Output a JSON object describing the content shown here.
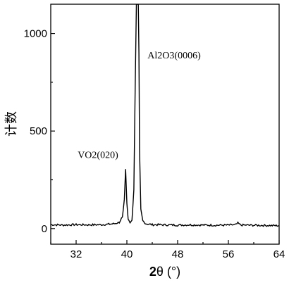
{
  "chart_data": {
    "type": "line",
    "xlabel_bold": "2",
    "xlabel_rest": "θ (°)",
    "ylabel": "计数",
    "xlim": [
      28,
      64
    ],
    "ylim": [
      -80,
      1150
    ],
    "x_ticks": [
      32,
      40,
      48,
      56,
      64
    ],
    "y_ticks": [
      0,
      500,
      1000
    ],
    "grid": false,
    "legend": "none",
    "line_color": "#000000",
    "series": [
      {
        "x": [
          28,
          30,
          32,
          34,
          36,
          37,
          38,
          38.8,
          39.3,
          39.6,
          39.8,
          40.0,
          40.2,
          40.5,
          40.8,
          41.1,
          41.3,
          41.5,
          41.6,
          41.7,
          41.8,
          41.9,
          42.0,
          42.2,
          42.5,
          43.0,
          44,
          46,
          48,
          50,
          52,
          54,
          56,
          57.2,
          57.5,
          57.8,
          58,
          60,
          62,
          64
        ],
        "y": [
          20,
          18,
          20,
          19,
          20,
          22,
          25,
          32,
          60,
          150,
          305,
          130,
          45,
          25,
          40,
          200,
          700,
          1150,
          1150,
          1150,
          1150,
          900,
          400,
          100,
          40,
          25,
          20,
          19,
          18,
          19,
          18,
          17,
          18,
          20,
          28,
          21,
          18,
          17,
          16,
          15
        ]
      }
    ],
    "annotations": [
      {
        "text": "VO2(020)",
        "x": 39.8,
        "y": 305
      },
      {
        "text": "Al2O3(0006)",
        "x": 41.7,
        "y": 900
      }
    ]
  }
}
